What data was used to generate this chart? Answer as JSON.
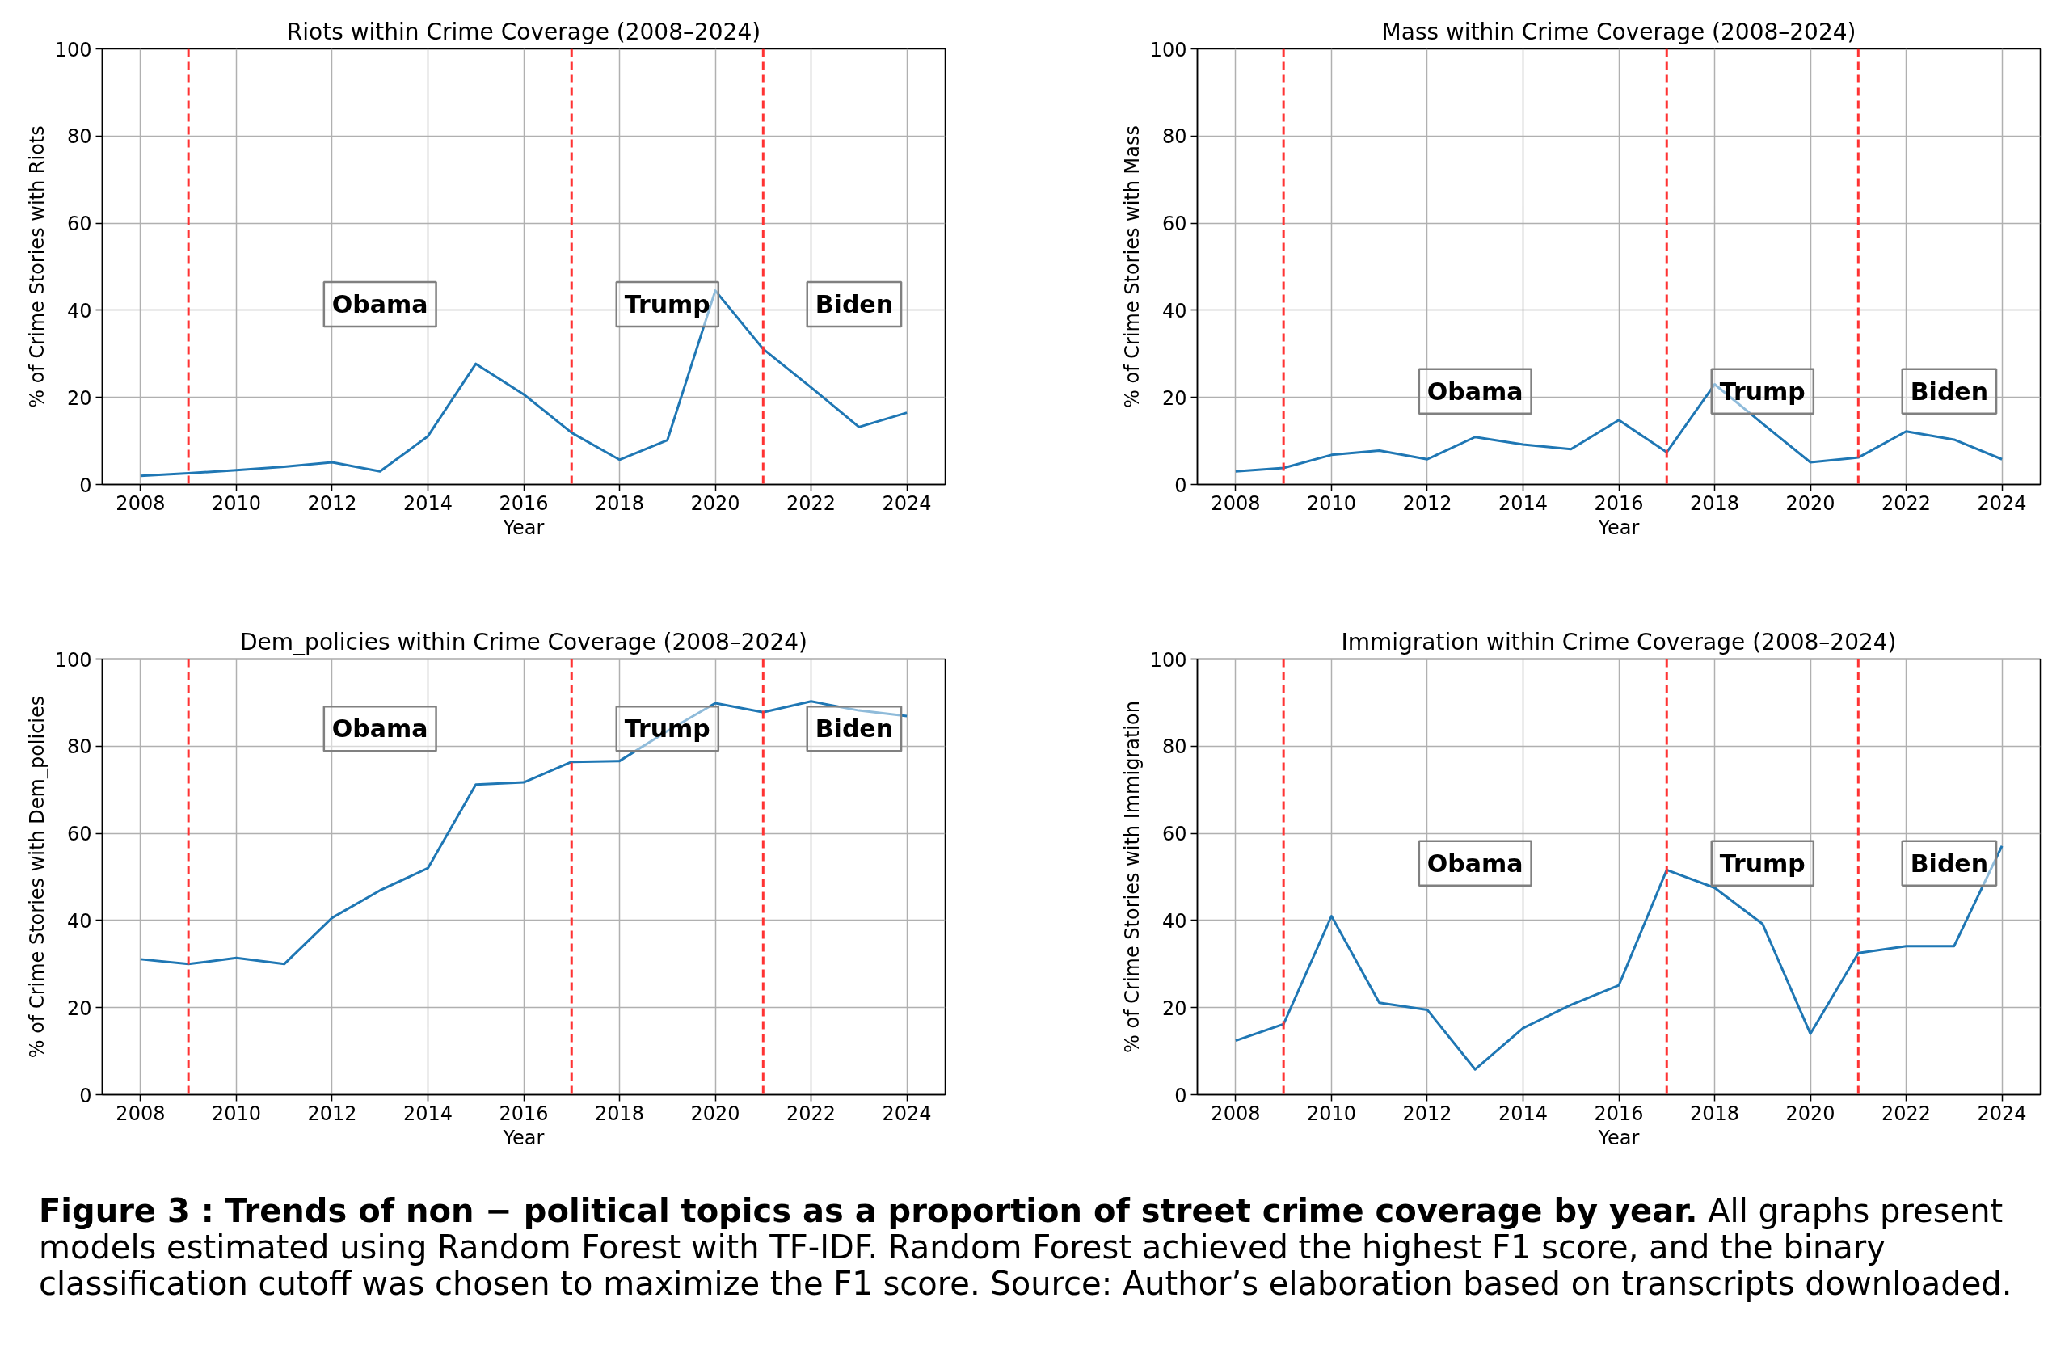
{
  "chart_data": [
    {
      "type": "line",
      "title": "Riots within Crime Coverage (2008–2024)",
      "xlabel": "Year",
      "ylabel": "% of Crime Stories with Riots",
      "x": [
        2008,
        2009,
        2010,
        2011,
        2012,
        2013,
        2014,
        2015,
        2016,
        2017,
        2018,
        2019,
        2020,
        2021,
        2022,
        2023,
        2024
      ],
      "values": [
        2.0,
        2.6,
        3.3,
        4.1,
        5.1,
        3.0,
        11.1,
        27.7,
        20.7,
        11.9,
        5.7,
        10.2,
        44.5,
        31.1,
        22.3,
        13.2,
        16.5
      ],
      "color": "#1f77b4",
      "xlim": [
        2007.2,
        2024.8
      ],
      "xticks": [
        2008,
        2010,
        2012,
        2014,
        2016,
        2018,
        2020,
        2022,
        2024
      ],
      "ylim": [
        0,
        100
      ],
      "yticks": [
        0,
        20,
        40,
        60,
        80,
        100
      ],
      "grid": true,
      "ref_lines": [
        {
          "axis": "x",
          "value": 2009,
          "color": "#ff3333",
          "line_style": "dashed"
        },
        {
          "axis": "x",
          "value": 2017,
          "color": "#ff3333",
          "line_style": "dashed"
        },
        {
          "axis": "x",
          "value": 2021,
          "color": "#ff3333",
          "line_style": "dashed"
        }
      ],
      "annotations": [
        "Obama",
        "Trump",
        "Biden"
      ]
    },
    {
      "type": "line",
      "title": "Mass within Crime Coverage (2008–2024)",
      "xlabel": "Year",
      "ylabel": "% of Crime Stories with Mass",
      "x": [
        2008,
        2009,
        2010,
        2011,
        2012,
        2013,
        2014,
        2015,
        2016,
        2017,
        2018,
        2019,
        2020,
        2021,
        2022,
        2023,
        2024
      ],
      "values": [
        3.0,
        3.8,
        6.8,
        7.8,
        5.8,
        10.9,
        9.2,
        8.1,
        14.8,
        7.4,
        23.0,
        14.0,
        5.1,
        6.2,
        12.2,
        10.3,
        5.8
      ],
      "color": "#1f77b4",
      "xlim": [
        2007.2,
        2024.8
      ],
      "xticks": [
        2008,
        2010,
        2012,
        2014,
        2016,
        2018,
        2020,
        2022,
        2024
      ],
      "ylim": [
        0,
        100
      ],
      "yticks": [
        0,
        20,
        40,
        60,
        80,
        100
      ],
      "grid": true,
      "ref_lines": [
        {
          "axis": "x",
          "value": 2009,
          "color": "#ff3333",
          "line_style": "dashed"
        },
        {
          "axis": "x",
          "value": 2017,
          "color": "#ff3333",
          "line_style": "dashed"
        },
        {
          "axis": "x",
          "value": 2021,
          "color": "#ff3333",
          "line_style": "dashed"
        }
      ],
      "annotations": [
        "Obama",
        "Trump",
        "Biden"
      ]
    },
    {
      "type": "line",
      "title": "Dem_policies within Crime Coverage (2008–2024)",
      "xlabel": "Year",
      "ylabel": "% of Crime Stories with Dem_policies",
      "x": [
        2008,
        2009,
        2010,
        2011,
        2012,
        2013,
        2014,
        2015,
        2016,
        2017,
        2018,
        2019,
        2020,
        2021,
        2022,
        2023,
        2024
      ],
      "values": [
        31.1,
        30.0,
        31.4,
        30.0,
        40.6,
        46.9,
        52.0,
        71.2,
        71.7,
        76.4,
        76.6,
        83.5,
        89.9,
        87.8,
        90.3,
        88.2,
        86.9
      ],
      "color": "#1f77b4",
      "xlim": [
        2007.2,
        2024.8
      ],
      "xticks": [
        2008,
        2010,
        2012,
        2014,
        2016,
        2018,
        2020,
        2022,
        2024
      ],
      "ylim": [
        0,
        100
      ],
      "yticks": [
        0,
        20,
        40,
        60,
        80,
        100
      ],
      "grid": true,
      "ref_lines": [
        {
          "axis": "x",
          "value": 2009,
          "color": "#ff3333",
          "line_style": "dashed"
        },
        {
          "axis": "x",
          "value": 2017,
          "color": "#ff3333",
          "line_style": "dashed"
        },
        {
          "axis": "x",
          "value": 2021,
          "color": "#ff3333",
          "line_style": "dashed"
        }
      ],
      "annotations": [
        "Obama",
        "Trump",
        "Biden"
      ]
    },
    {
      "type": "line",
      "title": "Immigration within Crime Coverage (2008–2024)",
      "xlabel": "Year",
      "ylabel": "% of Crime Stories with Immigration",
      "x": [
        2008,
        2009,
        2010,
        2011,
        2012,
        2013,
        2014,
        2015,
        2016,
        2017,
        2018,
        2019,
        2020,
        2021,
        2022,
        2023,
        2024
      ],
      "values": [
        12.4,
        16.2,
        41.0,
        21.1,
        19.5,
        5.8,
        15.3,
        20.6,
        25.1,
        51.6,
        47.5,
        39.2,
        14.0,
        32.5,
        34.1,
        34.1,
        57.1
      ],
      "color": "#1f77b4",
      "xlim": [
        2007.2,
        2024.8
      ],
      "xticks": [
        2008,
        2010,
        2012,
        2014,
        2016,
        2018,
        2020,
        2022,
        2024
      ],
      "ylim": [
        0,
        100
      ],
      "yticks": [
        0,
        20,
        40,
        60,
        80,
        100
      ],
      "grid": true,
      "ref_lines": [
        {
          "axis": "x",
          "value": 2009,
          "color": "#ff3333",
          "line_style": "dashed"
        },
        {
          "axis": "x",
          "value": 2017,
          "color": "#ff3333",
          "line_style": "dashed"
        },
        {
          "axis": "x",
          "value": 2021,
          "color": "#ff3333",
          "line_style": "dashed"
        }
      ],
      "annotations": [
        "Obama",
        "Trump",
        "Biden",
        "Figure 3 : Trends of non − political topics as a proportion of street crime coverage by year.",
        "All graphs present models estimated using Random Forest with TF-IDF. Random Forest achieved the highest F1 score, and the binary classification cutoff was chosen to maximize the F1 score. Source: Author’s elaboration based on transcripts downloaded."
      ]
    }
  ]
}
